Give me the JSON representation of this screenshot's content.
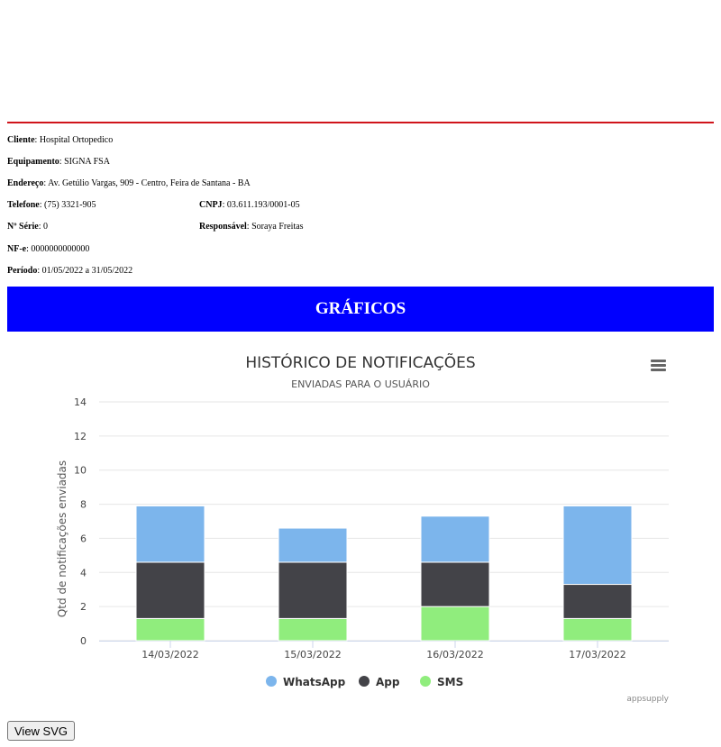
{
  "report": {
    "cliente_label": "Cliente",
    "cliente": "Hospital Ortopedico",
    "equipamento_label": "Equipamento",
    "equipamento": "SIGNA FSA",
    "endereco_label": "Endereço",
    "endereco": "Av. Getúlio Vargas, 909 - Centro, Feira de Santana - BA",
    "telefone_label": "Telefone",
    "telefone": "(75) 3321-905",
    "cnpj_label": "CNPJ",
    "cnpj": "03.611.193/0001-05",
    "serie_label": "Nº Série",
    "serie": "0",
    "responsavel_label": "Responsável",
    "responsavel": "Soraya Freitas",
    "nfe_label": "NF-e",
    "nfe": "0000000000000",
    "periodo_label": "Período",
    "periodo": "01/05/2022 a 31/05/2022"
  },
  "banner": {
    "title": "GRÁFICOS"
  },
  "colors": {
    "rule": "#d0141b",
    "banner": "#0000ff",
    "whatsapp": "#7cb5ec",
    "app": "#434348",
    "sms": "#90ed7d"
  },
  "chart_data": {
    "type": "bar",
    "stacked": true,
    "title": "HISTÓRICO DE NOTIFICAÇÕES",
    "subtitle": "ENVIADAS PARA O USUÁRIO",
    "ylabel": "Qtd de notificações enviadas",
    "xlabel": "",
    "ylim": [
      0,
      14
    ],
    "yticks": [
      0,
      2,
      4,
      6,
      8,
      10,
      12,
      14
    ],
    "categories": [
      "14/03/2022",
      "15/03/2022",
      "16/03/2022",
      "17/03/2022"
    ],
    "series": [
      {
        "name": "WhatsApp",
        "values": [
          3.3,
          2,
          2.7,
          4.6
        ],
        "color": "#7cb5ec"
      },
      {
        "name": "App",
        "values": [
          3.3,
          3.3,
          2.6,
          2
        ],
        "color": "#434348"
      },
      {
        "name": "SMS",
        "values": [
          1.3,
          1.3,
          2,
          1.3
        ],
        "color": "#90ed7d"
      }
    ],
    "legend_position": "bottom-center",
    "grid": true,
    "credit": "appsupply",
    "menu_icon": "hamburger-menu-icon"
  },
  "actions": {
    "view_svg_label": "View SVG"
  }
}
